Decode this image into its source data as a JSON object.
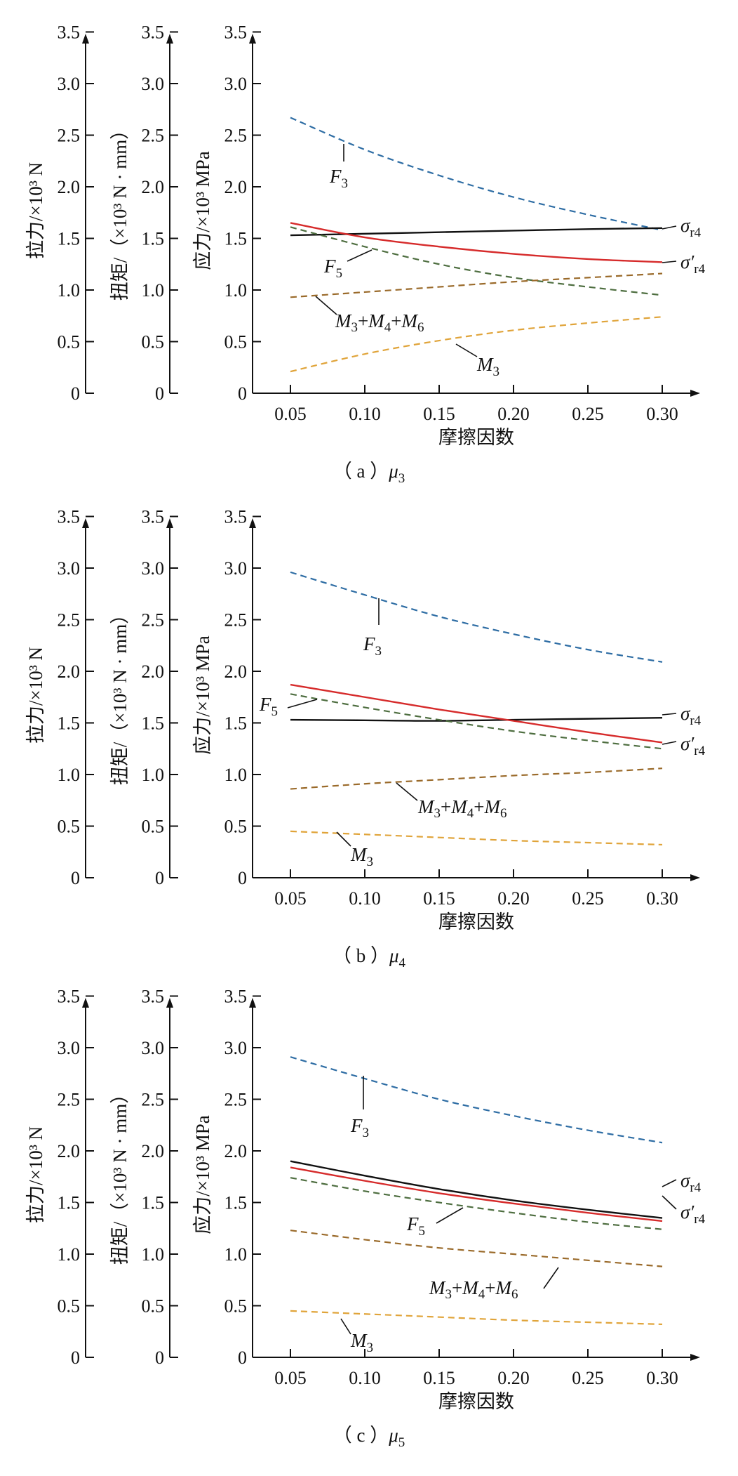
{
  "charts": [
    {
      "caption": "（ a ）μ3",
      "caption_main": "（ a ）",
      "caption_sym": "μ",
      "caption_sub": "3",
      "xlabel": "摩擦因数",
      "yaxes": [
        {
          "label": "拉力/×10³ N",
          "ticks": [
            "0",
            "0.5",
            "1.0",
            "1.5",
            "2.0",
            "2.5",
            "3.0",
            "3.5"
          ]
        },
        {
          "label": "扭矩/（×10³ N · mm）",
          "ticks": [
            "0",
            "0.5",
            "1.0",
            "1.5",
            "2.0",
            "2.5",
            "3.0",
            "3.5"
          ]
        },
        {
          "label": "应力/×10³ MPa",
          "ticks": [
            "0",
            "0.5",
            "1.0",
            "1.5",
            "2.0",
            "2.5",
            "3.0",
            "3.5"
          ]
        }
      ],
      "xticks": [
        "0.05",
        "0.10",
        "0.15",
        "0.20",
        "0.25",
        "0.30"
      ]
    },
    {
      "caption": "（ b ）μ4",
      "caption_main": "（ b ）",
      "caption_sym": "μ",
      "caption_sub": "4",
      "xlabel": "摩擦因数",
      "yaxes": [
        {
          "label": "拉力/×10³ N",
          "ticks": [
            "0",
            "0.5",
            "1.0",
            "1.5",
            "2.0",
            "2.5",
            "3.0",
            "3.5"
          ]
        },
        {
          "label": "扭矩/（×10³ N · mm）",
          "ticks": [
            "0",
            "0.5",
            "1.0",
            "1.5",
            "2.0",
            "2.5",
            "3.0",
            "3.5"
          ]
        },
        {
          "label": "应力/×10³ MPa",
          "ticks": [
            "0",
            "0.5",
            "1.0",
            "1.5",
            "2.0",
            "2.5",
            "3.0",
            "3.5"
          ]
        }
      ],
      "xticks": [
        "0.05",
        "0.10",
        "0.15",
        "0.20",
        "0.25",
        "0.30"
      ]
    },
    {
      "caption": "（ c ）μ5",
      "caption_main": "（ c ）",
      "caption_sym": "μ",
      "caption_sub": "5",
      "xlabel": "摩擦因数",
      "yaxes": [
        {
          "label": "拉力/×10³ N",
          "ticks": [
            "0",
            "0.5",
            "1.0",
            "1.5",
            "2.0",
            "2.5",
            "3.0",
            "3.5"
          ]
        },
        {
          "label": "扭矩/（×10³ N · mm）",
          "ticks": [
            "0",
            "0.5",
            "1.0",
            "1.5",
            "2.0",
            "2.5",
            "3.0",
            "3.5"
          ]
        },
        {
          "label": "应力/×10³ MPa",
          "ticks": [
            "0",
            "0.5",
            "1.0",
            "1.5",
            "2.0",
            "2.5",
            "3.0",
            "3.5"
          ]
        }
      ],
      "xticks": [
        "0.05",
        "0.10",
        "0.15",
        "0.20",
        "0.25",
        "0.30"
      ]
    }
  ],
  "chart_data": [
    {
      "type": "line",
      "caption": "（ a ）μ3",
      "xlabel": "摩擦因数",
      "ylabels": [
        "拉力/×10³ N",
        "扭矩/（×10³ N · mm）",
        "应力/×10³ MPa"
      ],
      "xlim": [
        0.05,
        0.3
      ],
      "ylim": [
        0,
        3.5
      ],
      "x": [
        0.05,
        0.1,
        0.15,
        0.2,
        0.25,
        0.3
      ],
      "series": [
        {
          "name": "F3",
          "style": "dashed",
          "color": "#2e6da4",
          "values": [
            2.67,
            2.36,
            2.11,
            1.9,
            1.73,
            1.58
          ]
        },
        {
          "name": "σr4",
          "style": "solid",
          "color": "#111111",
          "values": [
            1.53,
            1.545,
            1.56,
            1.575,
            1.59,
            1.6
          ]
        },
        {
          "name": "σ′r4",
          "style": "solid",
          "color": "#d62b2b",
          "values": [
            1.65,
            1.51,
            1.42,
            1.35,
            1.3,
            1.27
          ]
        },
        {
          "name": "F5",
          "style": "dashed",
          "color": "#4e6e40",
          "values": [
            1.61,
            1.42,
            1.25,
            1.12,
            1.03,
            0.95
          ]
        },
        {
          "name": "M3+M4+M6",
          "style": "dashed",
          "color": "#9a6a2a",
          "values": [
            0.93,
            0.98,
            1.03,
            1.08,
            1.12,
            1.16
          ]
        },
        {
          "name": "M3",
          "style": "dashed",
          "color": "#e0a43a",
          "values": [
            0.21,
            0.38,
            0.51,
            0.61,
            0.68,
            0.74
          ]
        }
      ]
    },
    {
      "type": "line",
      "caption": "（ b ）μ4",
      "xlabel": "摩擦因数",
      "ylabels": [
        "拉力/×10³ N",
        "扭矩/（×10³ N · mm）",
        "应力/×10³ MPa"
      ],
      "xlim": [
        0.05,
        0.3
      ],
      "ylim": [
        0,
        3.5
      ],
      "x": [
        0.05,
        0.1,
        0.15,
        0.2,
        0.25,
        0.3
      ],
      "series": [
        {
          "name": "F3",
          "style": "dashed",
          "color": "#2e6da4",
          "values": [
            2.96,
            2.74,
            2.53,
            2.36,
            2.21,
            2.09
          ]
        },
        {
          "name": "σr4",
          "style": "solid",
          "color": "#111111",
          "values": [
            1.53,
            1.525,
            1.52,
            1.53,
            1.54,
            1.55
          ]
        },
        {
          "name": "σ′r4",
          "style": "solid",
          "color": "#d62b2b",
          "values": [
            1.87,
            1.75,
            1.63,
            1.52,
            1.41,
            1.31
          ]
        },
        {
          "name": "F5",
          "style": "dashed",
          "color": "#4e6e40",
          "values": [
            1.78,
            1.65,
            1.53,
            1.42,
            1.33,
            1.25
          ]
        },
        {
          "name": "M3+M4+M6",
          "style": "dashed",
          "color": "#9a6a2a",
          "values": [
            0.86,
            0.91,
            0.95,
            0.99,
            1.02,
            1.06
          ]
        },
        {
          "name": "M3",
          "style": "dashed",
          "color": "#e0a43a",
          "values": [
            0.45,
            0.42,
            0.39,
            0.36,
            0.34,
            0.32
          ]
        }
      ]
    },
    {
      "type": "line",
      "caption": "（ c ）μ5",
      "xlabel": "摩擦因数",
      "ylabels": [
        "拉力/×10³ N",
        "扭矩/（×10³ N · mm）",
        "应力/×10³ MPa"
      ],
      "xlim": [
        0.05,
        0.3
      ],
      "ylim": [
        0,
        3.5
      ],
      "x": [
        0.05,
        0.1,
        0.15,
        0.2,
        0.25,
        0.3
      ],
      "series": [
        {
          "name": "F3",
          "style": "dashed",
          "color": "#2e6da4",
          "values": [
            2.91,
            2.7,
            2.5,
            2.34,
            2.2,
            2.08
          ]
        },
        {
          "name": "σr4",
          "style": "solid",
          "color": "#111111",
          "values": [
            1.9,
            1.76,
            1.63,
            1.52,
            1.43,
            1.35
          ]
        },
        {
          "name": "σ′r4",
          "style": "solid",
          "color": "#d62b2b",
          "values": [
            1.84,
            1.71,
            1.59,
            1.49,
            1.4,
            1.32
          ]
        },
        {
          "name": "F5",
          "style": "dashed",
          "color": "#4e6e40",
          "values": [
            1.74,
            1.61,
            1.5,
            1.4,
            1.31,
            1.24
          ]
        },
        {
          "name": "M3+M4+M6",
          "style": "dashed",
          "color": "#9a6a2a",
          "values": [
            1.23,
            1.14,
            1.06,
            1.0,
            0.94,
            0.88
          ]
        },
        {
          "name": "M3",
          "style": "dashed",
          "color": "#e0a43a",
          "values": [
            0.45,
            0.42,
            0.39,
            0.36,
            0.34,
            0.32
          ]
        }
      ]
    }
  ]
}
